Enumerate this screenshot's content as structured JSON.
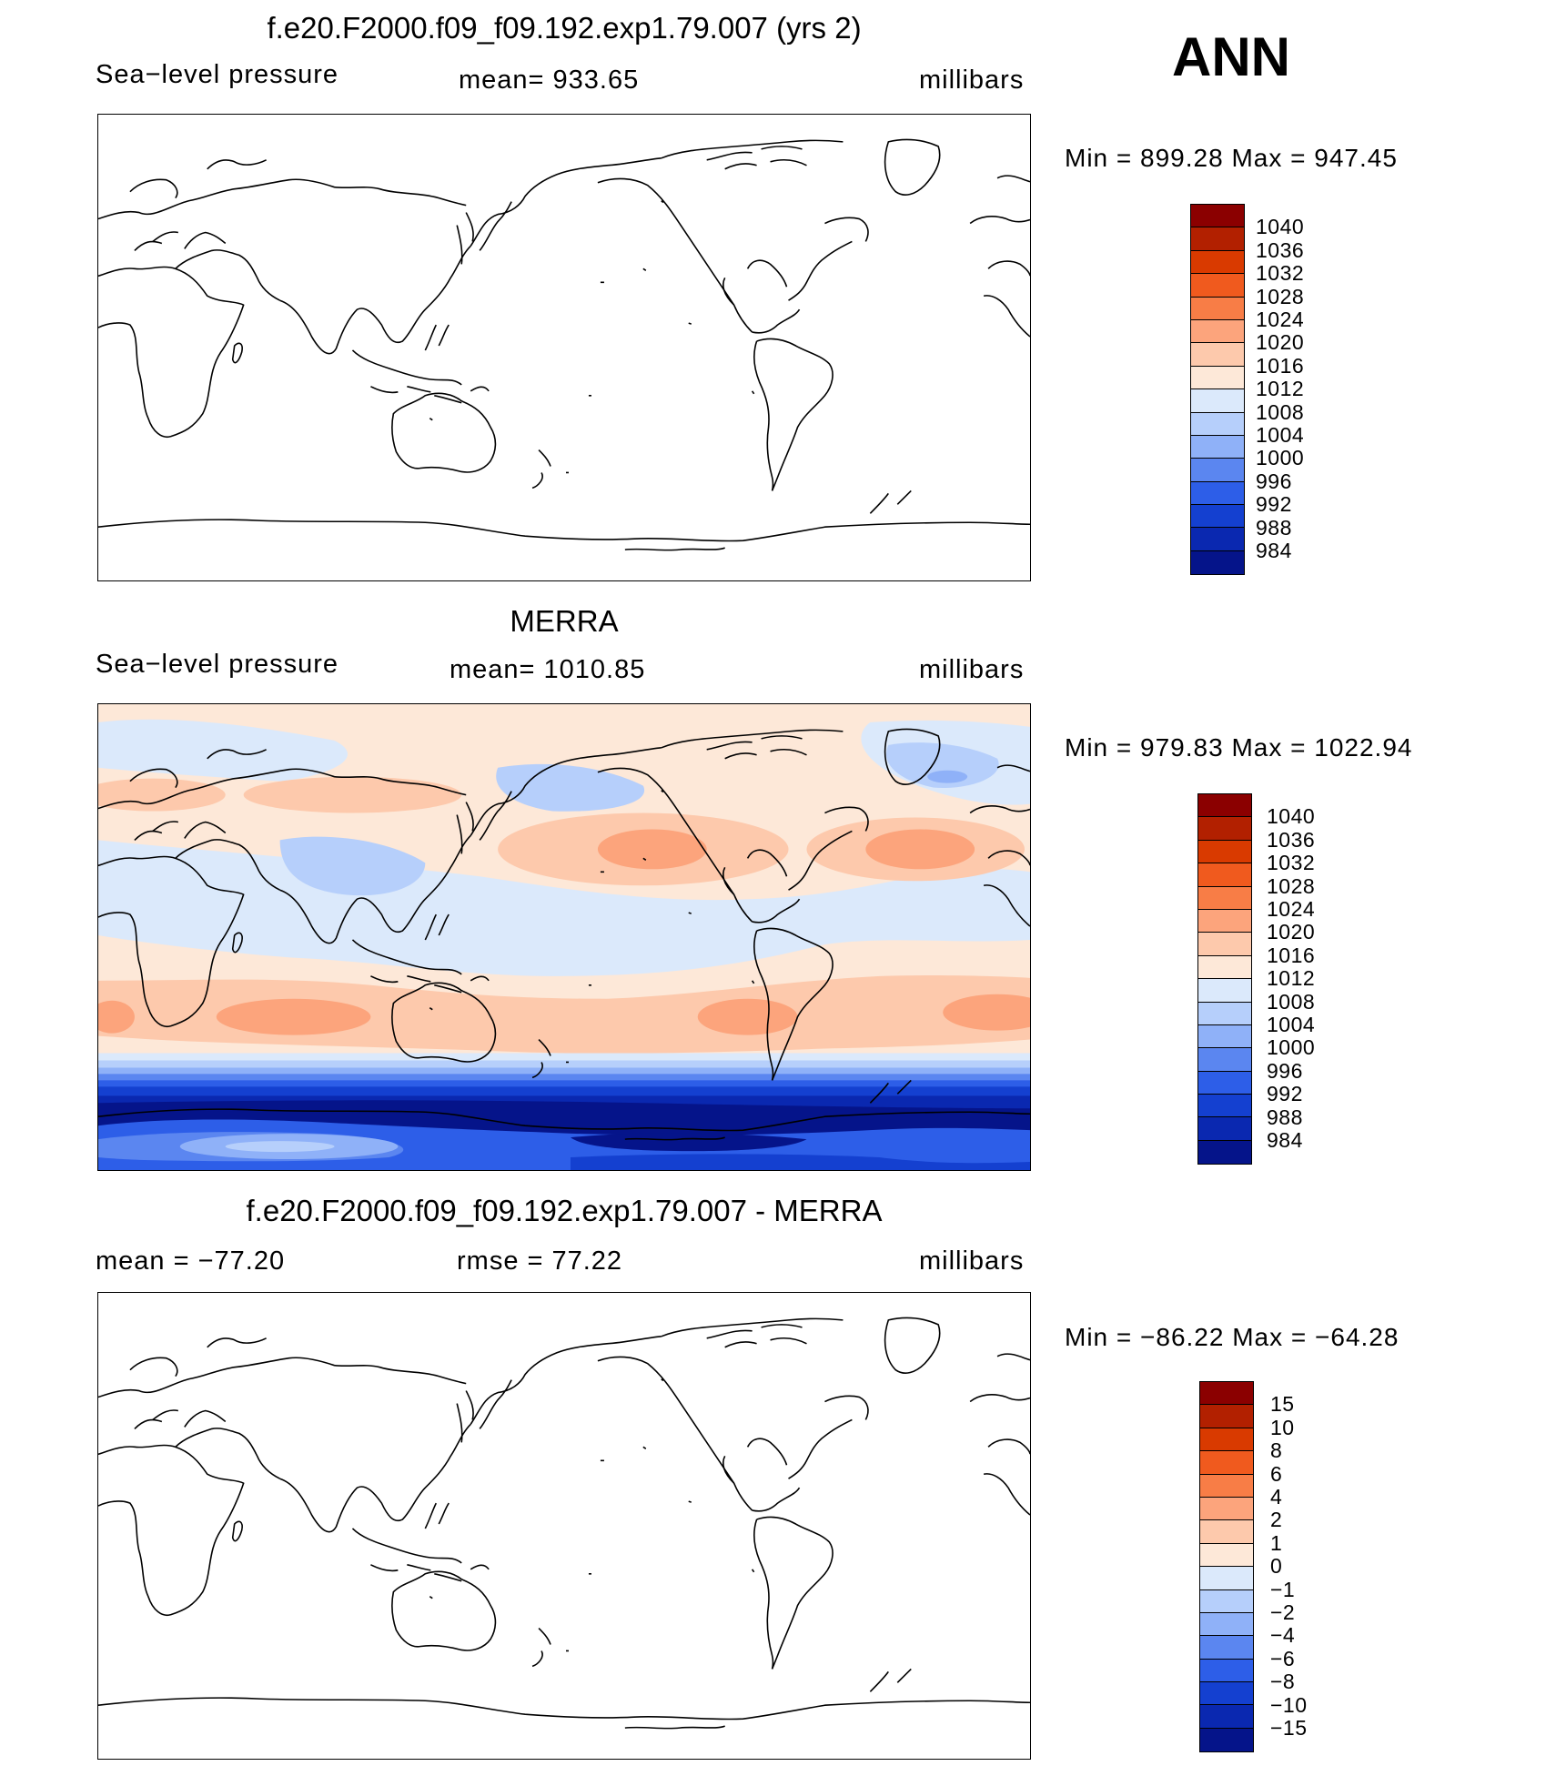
{
  "season": "ANN",
  "units": "millibars",
  "chart_data": [
    {
      "type": "heatmap",
      "title": "f.e20.F2000.f09_f09.192.exp1.79.007 (yrs 2)",
      "variable": "Sea−level pressure",
      "mean_label": "mean= 933.65",
      "units": "millibars",
      "min_max": "Min  =  899.28  Max  =  947.45",
      "filled": false,
      "colorbar_labels": [
        "1040",
        "1036",
        "1032",
        "1028",
        "1024",
        "1020",
        "1016",
        "1012",
        "1008",
        "1004",
        "1000",
        "996",
        "992",
        "988",
        "984"
      ]
    },
    {
      "type": "heatmap",
      "title": "MERRA",
      "variable": "Sea−level pressure",
      "mean_label": "mean=  1010.85",
      "units": "millibars",
      "min_max": "Min  =  979.83  Max  =  1022.94",
      "filled": true,
      "colorbar_labels": [
        "1040",
        "1036",
        "1032",
        "1028",
        "1024",
        "1020",
        "1016",
        "1012",
        "1008",
        "1004",
        "1000",
        "996",
        "992",
        "988",
        "984"
      ]
    },
    {
      "type": "heatmap",
      "title": "f.e20.F2000.f09_f09.192.exp1.79.007 - MERRA",
      "variable": "mean  =  −77.20",
      "mean_label": "rmse  =    77.22",
      "units": "millibars",
      "min_max": "Min  =  −86.22  Max  =  −64.28",
      "filled": false,
      "colorbar_labels": [
        "15",
        "10",
        "8",
        "6",
        "4",
        "2",
        "1",
        "0",
        "−1",
        "−2",
        "−4",
        "−6",
        "−8",
        "−10",
        "−15"
      ]
    }
  ],
  "colors": [
    "#8b0000",
    "#b22000",
    "#d93a00",
    "#f05a1e",
    "#f87d46",
    "#fca47c",
    "#fdc9ac",
    "#fde8d8",
    "#dbe9fb",
    "#b6cffb",
    "#8fb1f8",
    "#5b86f0",
    "#2d5ee8",
    "#1440d0",
    "#0a28b0",
    "#05148a"
  ]
}
